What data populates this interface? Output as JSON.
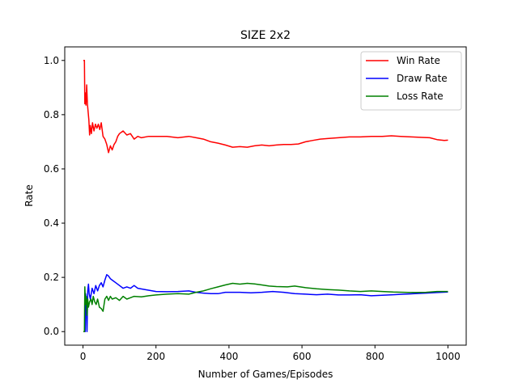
{
  "chart_data": {
    "type": "line",
    "title": "SIZE 2x2",
    "xlabel": "Number of Games/Episodes",
    "ylabel": "Rate",
    "xlim": [
      -50,
      1050
    ],
    "ylim": [
      -0.05,
      1.05
    ],
    "xticks": [
      0,
      200,
      400,
      600,
      800,
      1000
    ],
    "yticks": [
      0.0,
      0.2,
      0.4,
      0.6,
      0.8,
      1.0
    ],
    "grid": false,
    "legend_position": "top-right",
    "series": [
      {
        "name": "Win Rate",
        "color": "#ff0000",
        "points": [
          [
            1,
            1.0
          ],
          [
            4,
            1.0
          ],
          [
            5,
            0.84
          ],
          [
            7,
            0.88
          ],
          [
            8,
            0.835
          ],
          [
            10,
            0.91
          ],
          [
            12,
            0.84
          ],
          [
            14,
            0.81
          ],
          [
            16,
            0.78
          ],
          [
            18,
            0.725
          ],
          [
            20,
            0.76
          ],
          [
            23,
            0.73
          ],
          [
            26,
            0.77
          ],
          [
            30,
            0.74
          ],
          [
            34,
            0.765
          ],
          [
            38,
            0.75
          ],
          [
            42,
            0.765
          ],
          [
            46,
            0.745
          ],
          [
            50,
            0.77
          ],
          [
            55,
            0.72
          ],
          [
            60,
            0.71
          ],
          [
            65,
            0.69
          ],
          [
            70,
            0.66
          ],
          [
            75,
            0.685
          ],
          [
            80,
            0.67
          ],
          [
            85,
            0.69
          ],
          [
            90,
            0.7
          ],
          [
            95,
            0.72
          ],
          [
            100,
            0.73
          ],
          [
            110,
            0.74
          ],
          [
            120,
            0.725
          ],
          [
            130,
            0.73
          ],
          [
            140,
            0.71
          ],
          [
            150,
            0.72
          ],
          [
            160,
            0.715
          ],
          [
            180,
            0.72
          ],
          [
            200,
            0.72
          ],
          [
            230,
            0.72
          ],
          [
            260,
            0.715
          ],
          [
            290,
            0.72
          ],
          [
            310,
            0.715
          ],
          [
            330,
            0.71
          ],
          [
            350,
            0.7
          ],
          [
            370,
            0.695
          ],
          [
            390,
            0.688
          ],
          [
            410,
            0.68
          ],
          [
            430,
            0.682
          ],
          [
            450,
            0.68
          ],
          [
            470,
            0.685
          ],
          [
            490,
            0.688
          ],
          [
            510,
            0.685
          ],
          [
            530,
            0.688
          ],
          [
            550,
            0.69
          ],
          [
            570,
            0.69
          ],
          [
            590,
            0.692
          ],
          [
            610,
            0.7
          ],
          [
            630,
            0.705
          ],
          [
            650,
            0.71
          ],
          [
            670,
            0.712
          ],
          [
            700,
            0.715
          ],
          [
            730,
            0.718
          ],
          [
            760,
            0.718
          ],
          [
            790,
            0.72
          ],
          [
            820,
            0.72
          ],
          [
            845,
            0.722
          ],
          [
            870,
            0.72
          ],
          [
            900,
            0.718
          ],
          [
            930,
            0.716
          ],
          [
            950,
            0.715
          ],
          [
            970,
            0.708
          ],
          [
            990,
            0.705
          ],
          [
            1000,
            0.706
          ]
        ]
      },
      {
        "name": "Draw Rate",
        "color": "#0000ff",
        "points": [
          [
            1,
            0.0
          ],
          [
            6,
            0.0
          ],
          [
            7,
            0.14
          ],
          [
            9,
            0.12
          ],
          [
            11,
            0.0
          ],
          [
            13,
            0.15
          ],
          [
            15,
            0.175
          ],
          [
            17,
            0.14
          ],
          [
            20,
            0.12
          ],
          [
            25,
            0.16
          ],
          [
            30,
            0.14
          ],
          [
            35,
            0.17
          ],
          [
            40,
            0.15
          ],
          [
            45,
            0.17
          ],
          [
            50,
            0.18
          ],
          [
            55,
            0.165
          ],
          [
            60,
            0.19
          ],
          [
            65,
            0.21
          ],
          [
            70,
            0.205
          ],
          [
            75,
            0.195
          ],
          [
            80,
            0.19
          ],
          [
            90,
            0.18
          ],
          [
            100,
            0.17
          ],
          [
            110,
            0.16
          ],
          [
            120,
            0.165
          ],
          [
            130,
            0.16
          ],
          [
            140,
            0.17
          ],
          [
            150,
            0.16
          ],
          [
            170,
            0.155
          ],
          [
            200,
            0.148
          ],
          [
            230,
            0.147
          ],
          [
            260,
            0.148
          ],
          [
            290,
            0.15
          ],
          [
            310,
            0.145
          ],
          [
            330,
            0.142
          ],
          [
            350,
            0.14
          ],
          [
            370,
            0.14
          ],
          [
            390,
            0.145
          ],
          [
            410,
            0.145
          ],
          [
            430,
            0.145
          ],
          [
            460,
            0.143
          ],
          [
            490,
            0.145
          ],
          [
            520,
            0.148
          ],
          [
            550,
            0.145
          ],
          [
            580,
            0.14
          ],
          [
            610,
            0.138
          ],
          [
            640,
            0.136
          ],
          [
            670,
            0.138
          ],
          [
            700,
            0.135
          ],
          [
            730,
            0.135
          ],
          [
            760,
            0.136
          ],
          [
            790,
            0.132
          ],
          [
            820,
            0.134
          ],
          [
            850,
            0.136
          ],
          [
            880,
            0.138
          ],
          [
            910,
            0.14
          ],
          [
            940,
            0.142
          ],
          [
            970,
            0.144
          ],
          [
            1000,
            0.146
          ]
        ]
      },
      {
        "name": "Loss Rate",
        "color": "#008000",
        "points": [
          [
            1,
            0.0
          ],
          [
            4,
            0.0
          ],
          [
            5,
            0.165
          ],
          [
            7,
            0.1
          ],
          [
            9,
            0.13
          ],
          [
            11,
            0.06
          ],
          [
            13,
            0.12
          ],
          [
            15,
            0.09
          ],
          [
            18,
            0.11
          ],
          [
            22,
            0.12
          ],
          [
            25,
            0.1
          ],
          [
            28,
            0.13
          ],
          [
            32,
            0.11
          ],
          [
            36,
            0.1
          ],
          [
            40,
            0.12
          ],
          [
            45,
            0.09
          ],
          [
            50,
            0.085
          ],
          [
            55,
            0.075
          ],
          [
            60,
            0.12
          ],
          [
            65,
            0.13
          ],
          [
            70,
            0.115
          ],
          [
            75,
            0.13
          ],
          [
            80,
            0.12
          ],
          [
            90,
            0.125
          ],
          [
            100,
            0.115
          ],
          [
            110,
            0.13
          ],
          [
            120,
            0.12
          ],
          [
            130,
            0.125
          ],
          [
            140,
            0.13
          ],
          [
            160,
            0.128
          ],
          [
            180,
            0.132
          ],
          [
            200,
            0.135
          ],
          [
            230,
            0.138
          ],
          [
            260,
            0.14
          ],
          [
            290,
            0.138
          ],
          [
            310,
            0.145
          ],
          [
            330,
            0.15
          ],
          [
            350,
            0.158
          ],
          [
            370,
            0.165
          ],
          [
            390,
            0.172
          ],
          [
            410,
            0.178
          ],
          [
            430,
            0.175
          ],
          [
            450,
            0.178
          ],
          [
            470,
            0.176
          ],
          [
            490,
            0.172
          ],
          [
            510,
            0.168
          ],
          [
            530,
            0.166
          ],
          [
            560,
            0.165
          ],
          [
            580,
            0.168
          ],
          [
            610,
            0.162
          ],
          [
            640,
            0.158
          ],
          [
            670,
            0.155
          ],
          [
            700,
            0.153
          ],
          [
            730,
            0.15
          ],
          [
            760,
            0.148
          ],
          [
            790,
            0.15
          ],
          [
            820,
            0.148
          ],
          [
            850,
            0.146
          ],
          [
            880,
            0.145
          ],
          [
            910,
            0.144
          ],
          [
            940,
            0.145
          ],
          [
            970,
            0.148
          ],
          [
            1000,
            0.148
          ]
        ]
      }
    ]
  }
}
